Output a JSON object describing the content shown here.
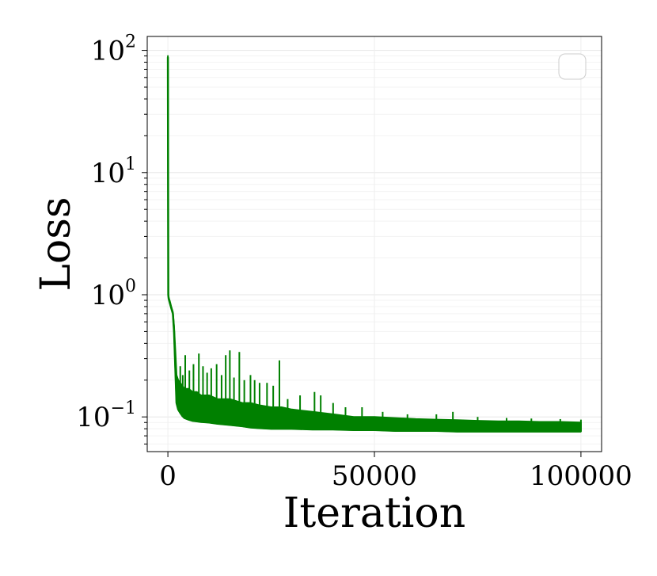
{
  "chart_data": {
    "type": "line",
    "title": "",
    "xlabel": "Iteration",
    "ylabel": "Loss",
    "xlim": [
      -5000,
      105000
    ],
    "ylim": [
      0.052,
      130
    ],
    "yscale": "log",
    "grid": true,
    "legend": {
      "placement": "top-right",
      "entries": []
    },
    "x_ticks": [
      {
        "value": 0,
        "label": "0"
      },
      {
        "value": 50000,
        "label": "50000"
      },
      {
        "value": 100000,
        "label": "100000"
      }
    ],
    "y_ticks": [
      {
        "value": 0.1,
        "base": "10",
        "exp": "−1"
      },
      {
        "value": 1,
        "base": "10",
        "exp": "0"
      },
      {
        "value": 10,
        "base": "10",
        "exp": "1"
      },
      {
        "value": 100,
        "base": "10",
        "exp": "2"
      }
    ],
    "series": [
      {
        "color": "#008000",
        "x": [
          0,
          100,
          200,
          500,
          800,
          1200,
          1500,
          1800,
          2100,
          2500,
          3000,
          3500,
          4000,
          5000,
          6000,
          7000,
          8000,
          10000,
          12000,
          15000,
          18000,
          20000,
          22000,
          25000,
          27500,
          30000,
          35000,
          40000,
          45000,
          50000,
          55000,
          60000,
          65000,
          70000,
          75000,
          80000,
          85000,
          90000,
          95000,
          100000
        ],
        "lower": [
          88,
          1.0,
          0.93,
          0.85,
          0.78,
          0.7,
          0.5,
          0.25,
          0.13,
          0.115,
          0.108,
          0.102,
          0.098,
          0.095,
          0.093,
          0.092,
          0.091,
          0.09,
          0.088,
          0.086,
          0.084,
          0.082,
          0.081,
          0.08,
          0.08,
          0.08,
          0.079,
          0.079,
          0.078,
          0.078,
          0.077,
          0.077,
          0.077,
          0.076,
          0.076,
          0.076,
          0.076,
          0.076,
          0.076,
          0.076
        ],
        "upper": [
          90,
          1.0,
          0.95,
          0.88,
          0.8,
          0.72,
          0.55,
          0.35,
          0.22,
          0.2,
          0.19,
          0.18,
          0.17,
          0.17,
          0.16,
          0.16,
          0.15,
          0.15,
          0.14,
          0.14,
          0.13,
          0.13,
          0.125,
          0.12,
          0.12,
          0.115,
          0.11,
          0.105,
          0.1,
          0.1,
          0.098,
          0.096,
          0.095,
          0.094,
          0.093,
          0.092,
          0.092,
          0.091,
          0.091,
          0.09
        ],
        "spikes": [
          {
            "x": 3000,
            "y": 0.26
          },
          {
            "x": 3600,
            "y": 0.22
          },
          {
            "x": 4200,
            "y": 0.32
          },
          {
            "x": 5200,
            "y": 0.24
          },
          {
            "x": 6200,
            "y": 0.27
          },
          {
            "x": 7500,
            "y": 0.33
          },
          {
            "x": 8500,
            "y": 0.26
          },
          {
            "x": 9500,
            "y": 0.23
          },
          {
            "x": 10500,
            "y": 0.25
          },
          {
            "x": 11800,
            "y": 0.27
          },
          {
            "x": 13000,
            "y": 0.22
          },
          {
            "x": 14000,
            "y": 0.32
          },
          {
            "x": 15000,
            "y": 0.35
          },
          {
            "x": 16000,
            "y": 0.21
          },
          {
            "x": 17300,
            "y": 0.34
          },
          {
            "x": 18500,
            "y": 0.2
          },
          {
            "x": 20000,
            "y": 0.22
          },
          {
            "x": 21000,
            "y": 0.2
          },
          {
            "x": 22200,
            "y": 0.19
          },
          {
            "x": 24000,
            "y": 0.19
          },
          {
            "x": 25500,
            "y": 0.18
          },
          {
            "x": 27000,
            "y": 0.29
          },
          {
            "x": 29000,
            "y": 0.14
          },
          {
            "x": 32000,
            "y": 0.15
          },
          {
            "x": 35500,
            "y": 0.16
          },
          {
            "x": 37000,
            "y": 0.15
          },
          {
            "x": 40000,
            "y": 0.13
          },
          {
            "x": 43000,
            "y": 0.12
          },
          {
            "x": 47000,
            "y": 0.12
          },
          {
            "x": 52000,
            "y": 0.11
          },
          {
            "x": 58000,
            "y": 0.105
          },
          {
            "x": 65000,
            "y": 0.105
          },
          {
            "x": 69000,
            "y": 0.11
          },
          {
            "x": 75000,
            "y": 0.1
          },
          {
            "x": 82000,
            "y": 0.098
          },
          {
            "x": 88000,
            "y": 0.097
          },
          {
            "x": 95000,
            "y": 0.096
          },
          {
            "x": 100000,
            "y": 0.095
          }
        ]
      }
    ]
  }
}
